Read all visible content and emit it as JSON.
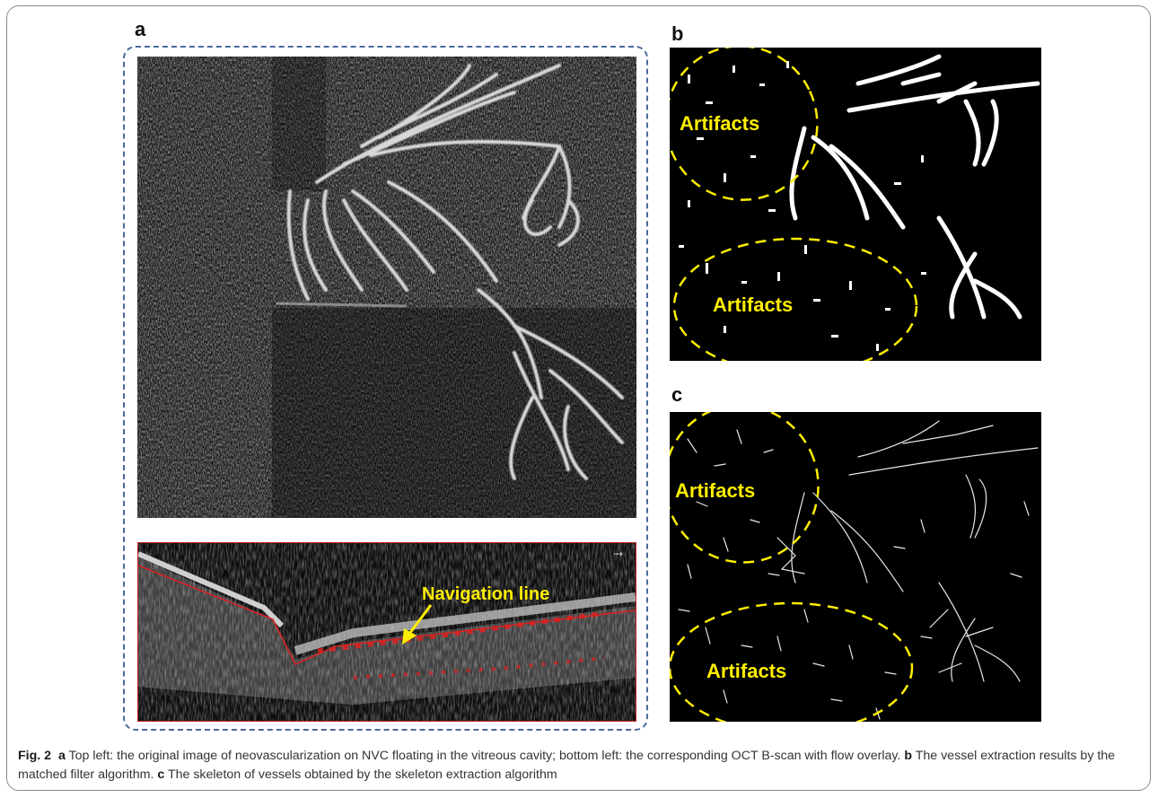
{
  "figure": {
    "panel_labels": {
      "a": "a",
      "b": "b",
      "c": "c"
    },
    "annotations": {
      "navigation_line": "Navigation line",
      "artifacts": "Artifacts"
    },
    "colors": {
      "annotation_yellow": "#ffee00",
      "dashed_box": "#4a6a9a",
      "flow_overlay_red": "#e02020"
    },
    "caption": {
      "fig_label": "Fig. 2",
      "a_label": "a",
      "a_text": "Top left: the original image of neovascularization on NVC floating in the vitreous cavity; bottom left: the corresponding OCT B-scan with flow overlay.",
      "b_label": "b",
      "b_text": "The vessel extraction results by the matched filter algorithm.",
      "c_label": "c",
      "c_text": "The skeleton of vessels obtained by the skeleton extraction algorithm"
    }
  }
}
